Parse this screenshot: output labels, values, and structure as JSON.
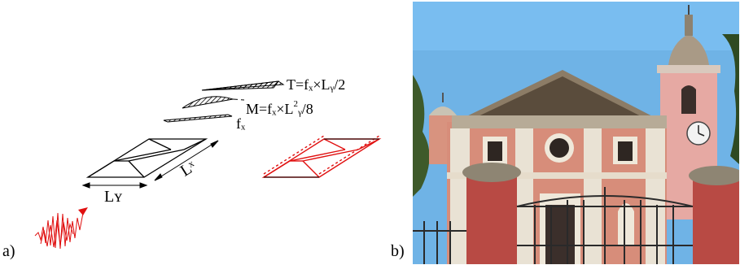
{
  "labels": {
    "panel_a": "a)",
    "panel_b": "b)"
  },
  "diagram": {
    "shear_formula": "T=fₓ×Lᵧ/2",
    "moment_formula_pre": "M=fₓ×L",
    "moment_formula_sup": "2",
    "moment_formula_post": "ᵧ/8",
    "load_label": "fₓ",
    "length_x_label": "Lˣ",
    "length_y_label": "Lʏ"
  },
  "colors": {
    "ink": "#000000",
    "accent_red": "#e01010",
    "sky": "#6fb3e6",
    "facade": "#d78d7a",
    "trim": "#e9e2d4",
    "pillar": "#b84a44"
  }
}
